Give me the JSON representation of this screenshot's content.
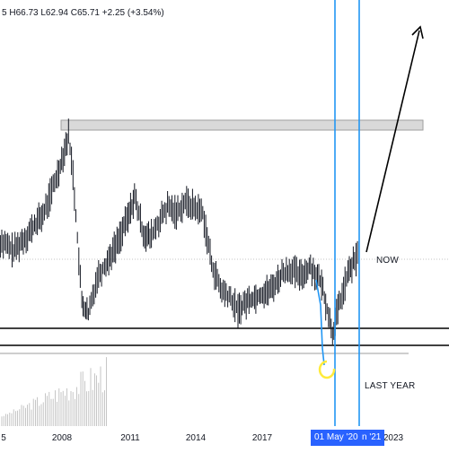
{
  "header": {
    "high": "H66.73",
    "low": "L62.94",
    "close": "C65.71",
    "change": "+2.25 (+3.54%)",
    "leading_fragment": "5"
  },
  "annotations": {
    "now_label": "NOW",
    "last_year_label": "LAST YEAR"
  },
  "time_axis": {
    "ticks": [
      "5",
      "2008",
      "2011",
      "2014",
      "2017",
      "2023"
    ],
    "markers": [
      "01 May '20",
      "n '21"
    ]
  },
  "colors": {
    "price_line": "#131722",
    "vertical_markers": "#2196f3",
    "marker_label_bg": "#2962ff",
    "support_lines": "#000000",
    "resistance_zone": "#d9d9d9",
    "circle_annotation": "#ffeb3b",
    "grid": "#f0f3fa"
  },
  "chart_data": {
    "type": "line",
    "title": "",
    "xlabel": "",
    "ylabel": "",
    "x_tick_labels": [
      "2008",
      "2011",
      "2014",
      "2017",
      "2023"
    ],
    "series": [
      {
        "values": [
          [
            2005.0,
            70
          ],
          [
            2005.8,
            65
          ],
          [
            2006.5,
            72
          ],
          [
            2007.2,
            80
          ],
          [
            2007.8,
            95
          ],
          [
            2008.3,
            110
          ],
          [
            2008.5,
            95
          ],
          [
            2008.9,
            45
          ],
          [
            2009.2,
            40
          ],
          [
            2009.6,
            55
          ],
          [
            2010.0,
            60
          ],
          [
            2010.5,
            68
          ],
          [
            2011.0,
            78
          ],
          [
            2011.3,
            86
          ],
          [
            2011.7,
            72
          ],
          [
            2012.0,
            70
          ],
          [
            2012.4,
            76
          ],
          [
            2012.8,
            82
          ],
          [
            2013.2,
            80
          ],
          [
            2013.6,
            84
          ],
          [
            2014.0,
            82
          ],
          [
            2014.4,
            80
          ],
          [
            2014.8,
            60
          ],
          [
            2015.2,
            50
          ],
          [
            2015.6,
            47
          ],
          [
            2016.0,
            42
          ],
          [
            2016.5,
            46
          ],
          [
            2017.0,
            48
          ],
          [
            2017.5,
            50
          ],
          [
            2018.0,
            56
          ],
          [
            2018.4,
            58
          ],
          [
            2018.8,
            55
          ],
          [
            2019.3,
            59
          ],
          [
            2019.8,
            52
          ],
          [
            2020.3,
            33
          ],
          [
            2020.6,
            44
          ],
          [
            2021.0,
            56
          ],
          [
            2021.3,
            61
          ],
          [
            2021.5,
            64
          ]
        ]
      }
    ]
  }
}
